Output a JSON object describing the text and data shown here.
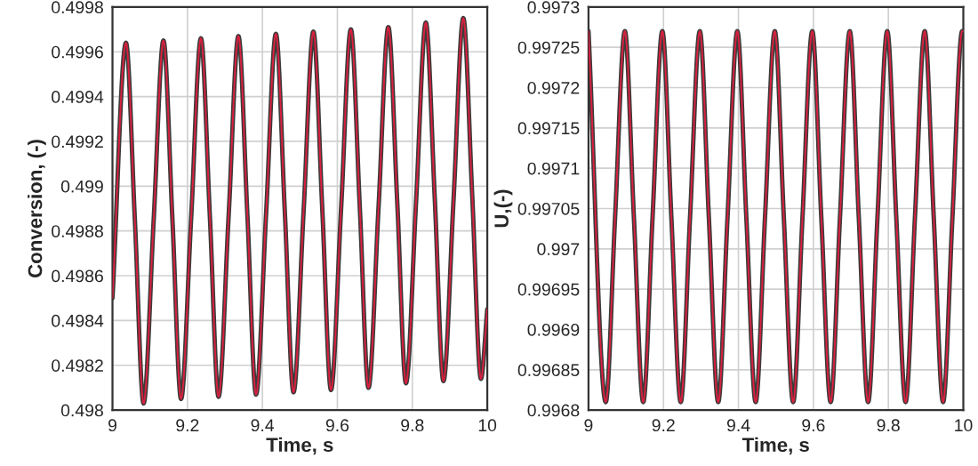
{
  "chart_data": [
    {
      "type": "line",
      "xlabel": "Time, s",
      "ylabel": "Conversion, (-)",
      "xlim": [
        9,
        10
      ],
      "xticks": [
        9,
        9.2,
        9.4,
        9.6,
        9.8,
        10
      ],
      "ylim": [
        0.498,
        0.4998
      ],
      "yticks": [
        0.498,
        0.4982,
        0.4984,
        0.4986,
        0.4988,
        0.499,
        0.4992,
        0.4994,
        0.4996,
        0.4998
      ],
      "grid": true,
      "line_style": "solid",
      "marker": "none",
      "x": [
        9,
        9.036,
        9.06,
        9.083,
        9.11,
        9.136,
        9.16,
        9.183,
        9.21,
        9.236,
        9.26,
        9.283,
        9.31,
        9.336,
        9.36,
        9.383,
        9.41,
        9.436,
        9.46,
        9.483,
        9.51,
        9.536,
        9.56,
        9.583,
        9.61,
        9.636,
        9.66,
        9.683,
        9.71,
        9.736,
        9.76,
        9.783,
        9.81,
        9.836,
        9.86,
        9.883,
        9.91,
        9.936,
        9.96,
        9.983,
        10
      ],
      "series": [
        {
          "color": "#d8203f",
          "values": [
            0.4985,
            0.49964,
            0.49884,
            0.49803,
            0.49885,
            0.49965,
            0.49885,
            0.49805,
            0.49886,
            0.49966,
            0.49886,
            0.49806,
            0.49887,
            0.49967,
            0.49887,
            0.49807,
            0.49888,
            0.49968,
            0.49888,
            0.49808,
            0.49889,
            0.49969,
            0.49889,
            0.49809,
            0.4989,
            0.4997,
            0.4989,
            0.4981,
            0.49891,
            0.49971,
            0.49892,
            0.49812,
            0.49893,
            0.49973,
            0.49894,
            0.49813,
            0.49894,
            0.49975,
            0.49895,
            0.49814,
            0.49845
          ]
        },
        {
          "color": "#3b3b3b",
          "values": [
            0.4985,
            0.49964,
            0.49884,
            0.49803,
            0.49885,
            0.49965,
            0.49885,
            0.49805,
            0.49886,
            0.49966,
            0.49886,
            0.49806,
            0.49887,
            0.49967,
            0.49887,
            0.49807,
            0.49888,
            0.49968,
            0.49888,
            0.49808,
            0.49889,
            0.49969,
            0.49889,
            0.49809,
            0.4989,
            0.4997,
            0.4989,
            0.4981,
            0.49891,
            0.49971,
            0.49892,
            0.49812,
            0.49893,
            0.49973,
            0.49894,
            0.49813,
            0.49894,
            0.49975,
            0.49895,
            0.49814,
            0.49845
          ]
        }
      ]
    },
    {
      "type": "line",
      "xlabel": "Time, s",
      "ylabel": "U,(-)",
      "xlim": [
        9,
        10
      ],
      "xticks": [
        9,
        9.2,
        9.4,
        9.6,
        9.8,
        10
      ],
      "ylim": [
        0.9968,
        0.9973
      ],
      "yticks": [
        0.9968,
        0.99685,
        0.9969,
        0.99695,
        0.997,
        0.99705,
        0.9971,
        0.99715,
        0.9972,
        0.99725,
        0.9973
      ],
      "grid": true,
      "line_style": "solid",
      "marker": "none",
      "x": [
        9,
        9.046,
        9.071,
        9.097,
        9.121,
        9.146,
        9.171,
        9.197,
        9.221,
        9.246,
        9.271,
        9.297,
        9.321,
        9.346,
        9.371,
        9.397,
        9.421,
        9.446,
        9.471,
        9.497,
        9.521,
        9.546,
        9.571,
        9.597,
        9.621,
        9.646,
        9.671,
        9.697,
        9.721,
        9.746,
        9.771,
        9.797,
        9.821,
        9.846,
        9.871,
        9.897,
        9.921,
        9.946,
        9.971,
        9.997,
        10
      ],
      "series": [
        {
          "color": "#d8203f",
          "values": [
            0.99727,
            0.99681,
            0.99704,
            0.99727,
            0.99704,
            0.99681,
            0.99704,
            0.99727,
            0.99704,
            0.99681,
            0.99704,
            0.99727,
            0.99704,
            0.99681,
            0.99704,
            0.99727,
            0.99704,
            0.99681,
            0.99704,
            0.99727,
            0.99704,
            0.99681,
            0.99704,
            0.99727,
            0.99704,
            0.99681,
            0.99704,
            0.99727,
            0.99704,
            0.99681,
            0.99704,
            0.99727,
            0.99704,
            0.99681,
            0.99704,
            0.99727,
            0.99704,
            0.99681,
            0.99704,
            0.99727,
            0.99727
          ]
        },
        {
          "color": "#3b3b3b",
          "values": [
            0.99727,
            0.99681,
            0.99704,
            0.99727,
            0.99704,
            0.99681,
            0.99704,
            0.99727,
            0.99704,
            0.99681,
            0.99704,
            0.99727,
            0.99704,
            0.99681,
            0.99704,
            0.99727,
            0.99704,
            0.99681,
            0.99704,
            0.99727,
            0.99704,
            0.99681,
            0.99704,
            0.99727,
            0.99704,
            0.99681,
            0.99704,
            0.99727,
            0.99704,
            0.99681,
            0.99704,
            0.99727,
            0.99704,
            0.99681,
            0.99704,
            0.99727,
            0.99704,
            0.99681,
            0.99704,
            0.99727,
            0.99727
          ]
        }
      ]
    }
  ]
}
